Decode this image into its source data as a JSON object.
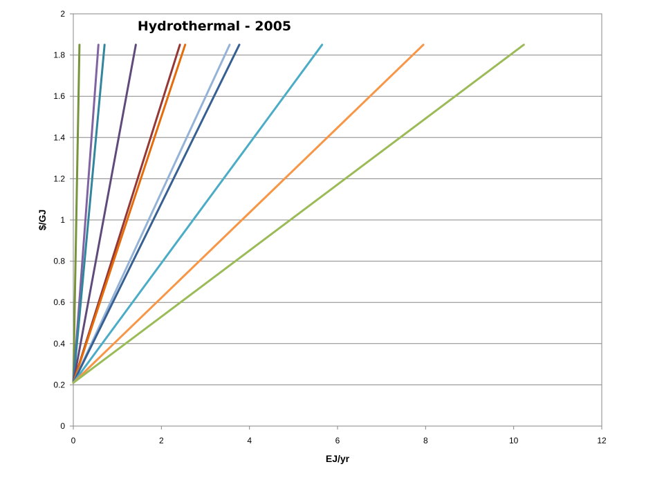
{
  "chart_data": {
    "type": "line",
    "title": "Hydrothermal - 2005",
    "xlabel": "EJ/yr",
    "ylabel": "$/GJ",
    "xlim": [
      0,
      12
    ],
    "ylim": [
      0,
      2
    ],
    "x_ticks": [
      0,
      2,
      4,
      6,
      8,
      10,
      12
    ],
    "y_ticks": [
      0,
      0.2,
      0.4,
      0.6,
      0.8,
      1,
      1.2,
      1.4,
      1.6,
      1.8,
      2
    ],
    "grid": "horizontal",
    "legend": "none",
    "series": [
      {
        "color": "#77933C",
        "points": [
          [
            0,
            0.21
          ],
          [
            0.14,
            1.85
          ]
        ]
      },
      {
        "color": "#8064A2",
        "points": [
          [
            0,
            0.21
          ],
          [
            0.57,
            1.85
          ]
        ]
      },
      {
        "color": "#31859C",
        "points": [
          [
            0,
            0.21
          ],
          [
            0.71,
            1.85
          ]
        ]
      },
      {
        "color": "#604A7B",
        "points": [
          [
            0,
            0.21
          ],
          [
            1.42,
            1.85
          ]
        ]
      },
      {
        "color": "#953735",
        "points": [
          [
            0,
            0.21
          ],
          [
            2.42,
            1.85
          ]
        ]
      },
      {
        "color": "#E46C0A",
        "points": [
          [
            0,
            0.21
          ],
          [
            2.54,
            1.85
          ]
        ]
      },
      {
        "color": "#95B3D7",
        "points": [
          [
            0,
            0.21
          ],
          [
            3.55,
            1.85
          ]
        ]
      },
      {
        "color": "#376092",
        "points": [
          [
            0,
            0.21
          ],
          [
            3.77,
            1.85
          ]
        ]
      },
      {
        "color": "#4BACC6",
        "points": [
          [
            0,
            0.21
          ],
          [
            5.65,
            1.85
          ]
        ]
      },
      {
        "color": "#F79646",
        "points": [
          [
            0,
            0.21
          ],
          [
            7.95,
            1.85
          ]
        ]
      },
      {
        "color": "#9BBB59",
        "points": [
          [
            0,
            0.21
          ],
          [
            10.23,
            1.85
          ]
        ]
      }
    ]
  }
}
